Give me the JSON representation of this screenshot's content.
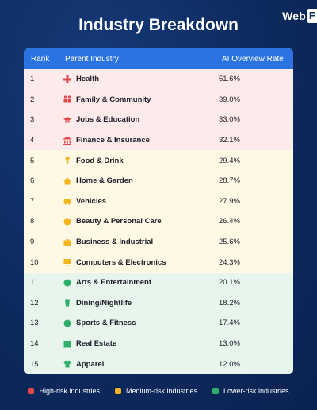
{
  "brand": {
    "text": "Web",
    "box_text": "F"
  },
  "title": "Industry Breakdown",
  "columns": [
    "Rank",
    "Parent Industry",
    "AI Overview Rate"
  ],
  "colors": {
    "header": "#2a73e0",
    "high": "#e5484d",
    "medium": "#f2b51d",
    "low": "#2fae6a"
  },
  "chart_data": {
    "type": "table",
    "title": "Industry Breakdown",
    "columns": [
      "Rank",
      "Parent Industry",
      "AI Overview Rate"
    ],
    "rows": [
      {
        "rank": "1",
        "industry": "Health",
        "rate": "51.6%",
        "risk": "high",
        "icon": "medical-cross-icon"
      },
      {
        "rank": "2",
        "industry": "Family & Community",
        "rate": "39.0%",
        "risk": "high",
        "icon": "family-icon"
      },
      {
        "rank": "3",
        "industry": "Jobs & Education",
        "rate": "33.0%",
        "risk": "high",
        "icon": "graduation-cap-icon"
      },
      {
        "rank": "4",
        "industry": "Finance & Insurance",
        "rate": "32.1%",
        "risk": "high",
        "icon": "bank-icon"
      },
      {
        "rank": "5",
        "industry": "Food & Drink",
        "rate": "29.4%",
        "risk": "medium",
        "icon": "food-icon"
      },
      {
        "rank": "6",
        "industry": "Home & Garden",
        "rate": "28.7%",
        "risk": "medium",
        "icon": "house-icon"
      },
      {
        "rank": "7",
        "industry": "Vehicles",
        "rate": "27.9%",
        "risk": "medium",
        "icon": "car-icon"
      },
      {
        "rank": "8",
        "industry": "Beauty & Personal Care",
        "rate": "26.4%",
        "risk": "medium",
        "icon": "beauty-icon"
      },
      {
        "rank": "9",
        "industry": "Business & Industrial",
        "rate": "25.6%",
        "risk": "medium",
        "icon": "briefcase-icon"
      },
      {
        "rank": "10",
        "industry": "Computers & Electronics",
        "rate": "24.3%",
        "risk": "medium",
        "icon": "computer-icon"
      },
      {
        "rank": "11",
        "industry": "Arts & Entertainment",
        "rate": "20.1%",
        "risk": "low",
        "icon": "palette-icon"
      },
      {
        "rank": "12",
        "industry": "Dining/Nightlife",
        "rate": "18.2%",
        "risk": "low",
        "icon": "drink-icon"
      },
      {
        "rank": "13",
        "industry": "Sports & Fitness",
        "rate": "17.4%",
        "risk": "low",
        "icon": "ball-icon"
      },
      {
        "rank": "14",
        "industry": "Real Estate",
        "rate": "13.0%",
        "risk": "low",
        "icon": "real-estate-icon"
      },
      {
        "rank": "15",
        "industry": "Apparel",
        "rate": "12.0%",
        "risk": "low",
        "icon": "shirt-icon"
      }
    ]
  },
  "legend": [
    {
      "label": "High-risk industries",
      "risk": "high"
    },
    {
      "label": "Medium-risk industries",
      "risk": "medium"
    },
    {
      "label": "Lower-risk industries",
      "risk": "low"
    }
  ]
}
